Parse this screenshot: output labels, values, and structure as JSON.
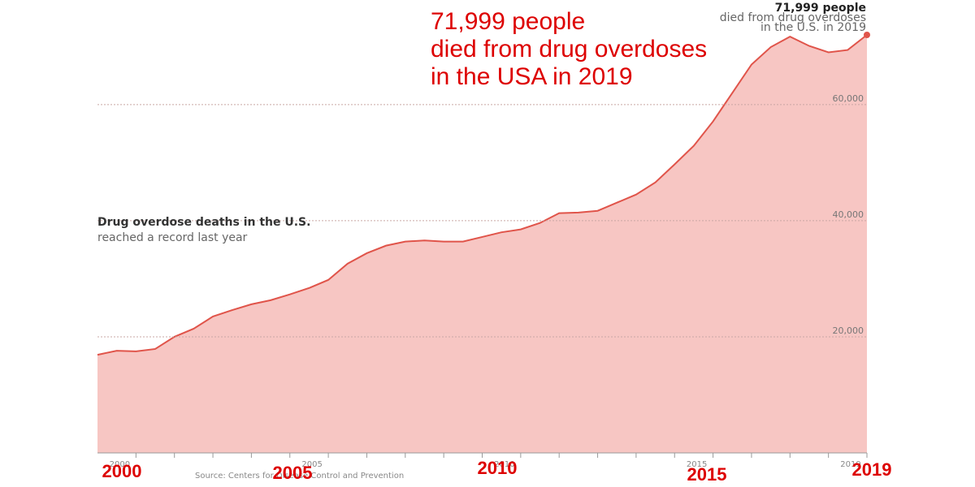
{
  "chart_data": {
    "type": "area",
    "title": [
      "71,999 people",
      "died from drug overdoses",
      "in the USA in 2019"
    ],
    "subtitle": [
      "Drug overdose deaths in the U.S.",
      "reached a record last year"
    ],
    "annotation": [
      "71,999 people",
      "died from drug overdoses",
      "in the U.S. in 2019"
    ],
    "source": "Source: Centers for Disease Control and Prevention",
    "year_labels": [
      "2000",
      "2005",
      "2010",
      "2015",
      "2019"
    ],
    "x": [
      1999,
      1999.5,
      2000,
      2000.5,
      2001,
      2001.5,
      2002,
      2002.5,
      2003,
      2003.5,
      2004,
      2004.5,
      2005,
      2005.5,
      2006,
      2006.5,
      2007,
      2007.5,
      2008,
      2008.5,
      2009,
      2009.5,
      2010,
      2010.5,
      2011,
      2011.5,
      2012,
      2012.5,
      2013,
      2013.5,
      2014,
      2014.5,
      2015,
      2015.5,
      2016,
      2016.5,
      2017,
      2017.5,
      2018,
      2018.5,
      2019
    ],
    "series": [
      {
        "name": "Drug overdose deaths",
        "color": "#e0544a",
        "fill": "#f7c6c3",
        "values": [
          16900,
          17600,
          17500,
          17900,
          20000,
          21400,
          23500,
          24600,
          25600,
          26300,
          27300,
          28400,
          29800,
          32600,
          34400,
          35700,
          36400,
          36600,
          36400,
          36400,
          37200,
          38000,
          38500,
          39600,
          41300,
          41400,
          41700,
          43100,
          44500,
          46600,
          49700,
          52900,
          57100,
          62000,
          66900,
          69900,
          71700,
          70100,
          69000,
          69400,
          71999
        ]
      }
    ],
    "xlim": [
      1999,
      2019
    ],
    "xticks": [
      2000,
      2005,
      2010,
      2015,
      2019
    ],
    "xminorticks": [
      2000,
      2001,
      2002,
      2003,
      2004,
      2005,
      2006,
      2007,
      2008,
      2009,
      2010,
      2011,
      2012,
      2013,
      2014,
      2015,
      2016,
      2017,
      2018,
      2019
    ],
    "ylim": [
      0,
      72000
    ],
    "yticks": [
      {
        "value": 20000,
        "label": "20,000"
      },
      {
        "value": 40000,
        "label": "40,000"
      },
      {
        "value": 60000,
        "label": "60,000"
      }
    ],
    "grid": true
  }
}
